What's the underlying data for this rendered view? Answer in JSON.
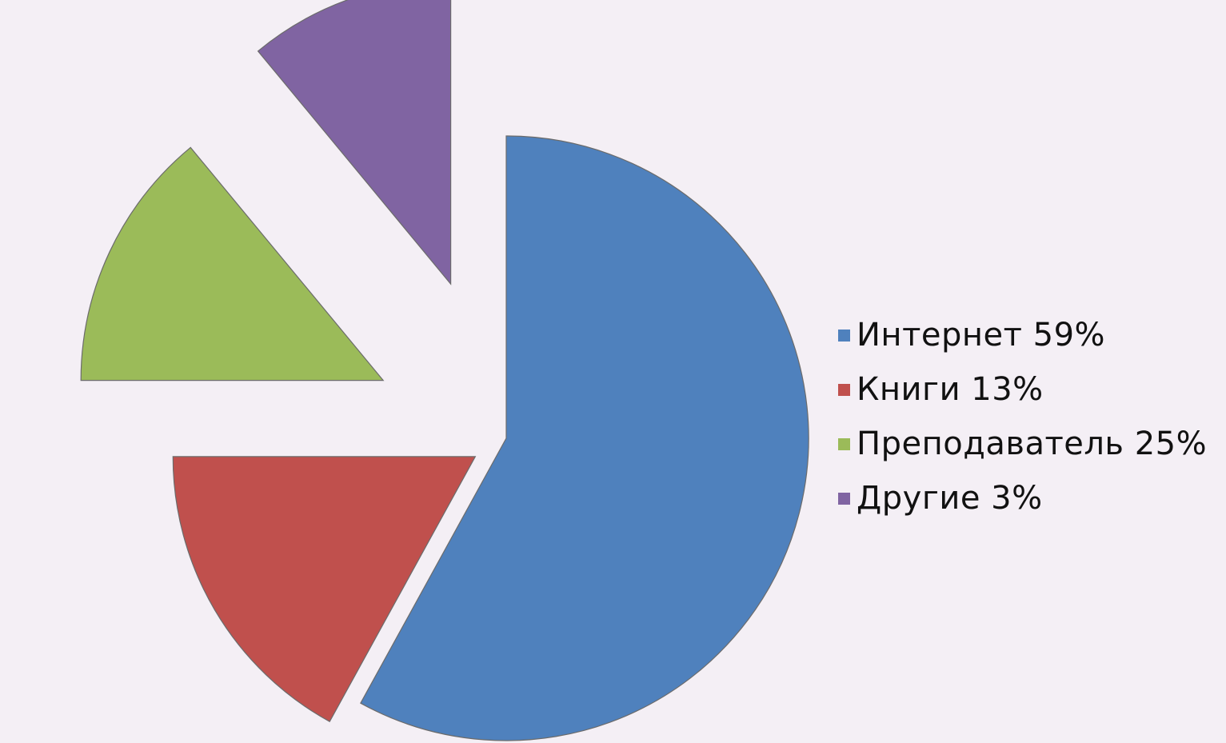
{
  "chart_data": {
    "type": "pie",
    "title": "",
    "legend_position": "right",
    "exploded": true,
    "series": [
      {
        "slices": [
          {
            "label": "Интернет",
            "percent_label": "59%",
            "value": 59,
            "displayed_share": 0.58,
            "color": "#4f81bd",
            "exploded": false
          },
          {
            "label": "Книги",
            "percent_label": "13%",
            "value": 13,
            "displayed_share": 0.17,
            "color": "#c0504d",
            "exploded": true
          },
          {
            "label": "Преподаватель",
            "percent_label": "25%",
            "value": 25,
            "displayed_share": 0.14,
            "color": "#9bbb59",
            "exploded": true
          },
          {
            "label": "Другие",
            "percent_label": "3%",
            "value": 3,
            "displayed_share": 0.11,
            "color": "#8064a2",
            "exploded": true
          }
        ]
      }
    ]
  },
  "legend": {
    "items": [
      {
        "name": "Интернет",
        "percent": "59%"
      },
      {
        "name": "Книги",
        "percent": "13%"
      },
      {
        "name": "Преподаватель",
        "percent": "25%"
      },
      {
        "name": "Другие",
        "percent": "3%"
      }
    ]
  }
}
